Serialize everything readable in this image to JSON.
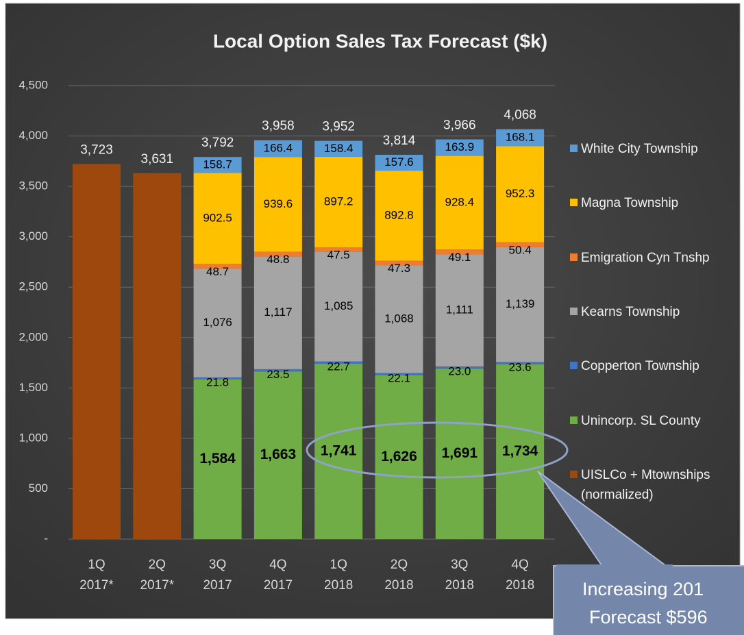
{
  "chart_data": {
    "type": "stacked_bar",
    "title": "Local Option Sales Tax Forecast ($k)",
    "categories": [
      "1Q\n2017*",
      "2Q\n2017*",
      "3Q\n2017",
      "4Q\n2017",
      "1Q\n2018",
      "2Q\n2018",
      "3Q\n2018",
      "4Q\n2018"
    ],
    "series": [
      {
        "name": "UISLCo + Mtownships (normalized)",
        "color": "#9e480e",
        "values": [
          3723,
          3631,
          null,
          null,
          null,
          null,
          null,
          null
        ]
      },
      {
        "name": "Unincorp. SL County",
        "color": "#70ad47",
        "values": [
          null,
          null,
          1584,
          1663,
          1741,
          1626,
          1691,
          1734
        ],
        "value_labels": [
          null,
          null,
          "1,584",
          "1,663",
          "1,741",
          "1,626",
          "1,691",
          "1,734"
        ]
      },
      {
        "name": "Copperton Township",
        "color": "#4472c4",
        "values": [
          null,
          null,
          21.8,
          23.5,
          22.7,
          22.1,
          23.0,
          23.6
        ],
        "value_labels": [
          null,
          null,
          "21.8",
          "23.5",
          "22.7",
          "22.1",
          "23.0",
          "23.6"
        ]
      },
      {
        "name": "Kearns Township",
        "color": "#a5a5a5",
        "values": [
          null,
          null,
          1076,
          1117,
          1085,
          1068,
          1111,
          1139
        ],
        "value_labels": [
          null,
          null,
          "1,076",
          "1,117",
          "1,085",
          "1,068",
          "1,111",
          "1,139"
        ]
      },
      {
        "name": "Emigration Cyn Tnshp",
        "color": "#ed7d31",
        "values": [
          null,
          null,
          48.7,
          48.8,
          47.5,
          47.3,
          49.1,
          50.4
        ]
      },
      {
        "name": "Magna Township",
        "color": "#ffc000",
        "values": [
          null,
          null,
          902.5,
          939.6,
          897.2,
          892.8,
          928.4,
          952.3
        ]
      },
      {
        "name": "White City Township",
        "color": "#5b9bd5",
        "values": [
          null,
          null,
          158.7,
          166.4,
          158.4,
          157.6,
          163.9,
          168.1
        ]
      }
    ],
    "totals": [
      3723,
      3631,
      3792,
      3958,
      3952,
      3814,
      3966,
      4068
    ],
    "total_labels": [
      "3,723",
      "3,631",
      "3,792",
      "3,958",
      "3,952",
      "3,814",
      "3,966",
      "4,068"
    ],
    "ylim": [
      0,
      4500
    ],
    "yticks": [
      {
        "value": 0,
        "label": "-"
      },
      500,
      {
        "value": 1000,
        "label": "1,000"
      },
      {
        "value": 1500,
        "label": "1,500"
      },
      {
        "value": 2000,
        "label": "2,000"
      },
      {
        "value": 2500,
        "label": "2,500"
      },
      {
        "value": 3000,
        "label": "3,000"
      },
      {
        "value": 3500,
        "label": "3,500"
      },
      {
        "value": 4000,
        "label": "4,000"
      },
      {
        "value": 4500,
        "label": "4,500"
      }
    ],
    "grid": true,
    "legend": "right",
    "annotation": [
      "Increasing 201",
      "Forecast $596"
    ]
  }
}
